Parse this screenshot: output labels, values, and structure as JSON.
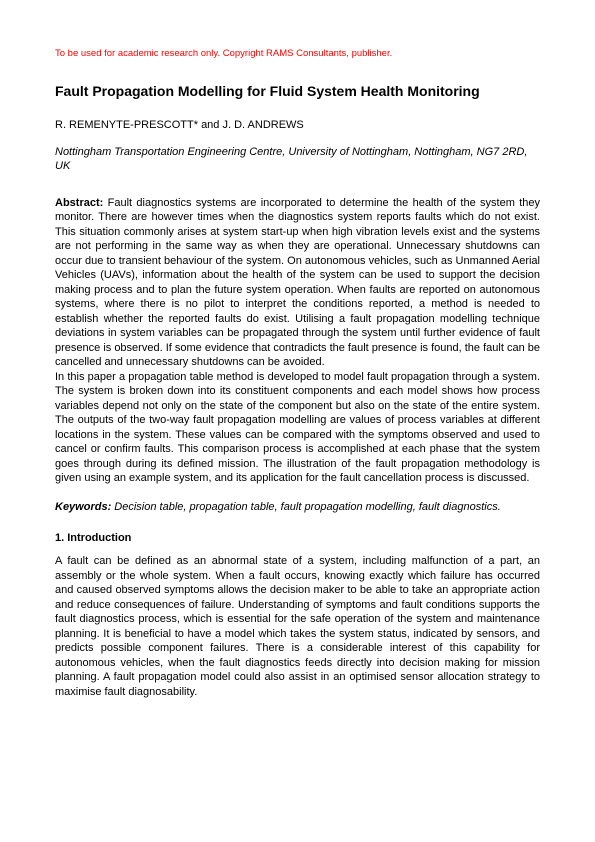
{
  "copyright": "To be used for academic research only. Copyright RAMS Consultants, publisher.",
  "title": "Fault Propagation Modelling for Fluid System Health Monitoring",
  "authors": "R. REMENYTE-PRESCOTT* and J. D. ANDREWS",
  "affiliation": "Nottingham Transportation Engineering Centre, University of Nottingham, Nottingham, NG7 2RD, UK",
  "abstract_label": "Abstract:",
  "abstract_body": " Fault diagnostics systems are incorporated to determine the health of the system they monitor. There are however times when the diagnostics system reports faults which do not exist. This situation commonly arises at system start-up when high vibration levels exist and the systems are not performing in the same way as when they are operational. Unnecessary shutdowns can occur due to transient behaviour of the system. On autonomous vehicles, such as Unmanned Aerial Vehicles (UAVs), information about the health of the system can be used to support the decision making process and to plan the future system operation. When faults are reported on autonomous systems, where there is no pilot to interpret the conditions reported, a method is needed to establish whether the reported faults do exist. Utilising a fault propagation modelling technique deviations in system variables can be propagated through the system until further evidence of fault presence is observed. If some evidence that contradicts the fault presence is found, the fault can be cancelled and unnecessary shutdowns can be avoided.",
  "abstract_body2": "In this paper a propagation table method is developed to model fault propagation through a system. The system is broken down into its constituent components and each model shows how process variables depend not only on the state of the component but also on the state of the entire system. The outputs of the two-way fault propagation modelling are values of process variables at different locations in the system. These values can be compared with the symptoms observed and used to cancel or confirm faults. This comparison process is accomplished at each phase that the system goes through during its defined mission. The illustration of the fault propagation methodology is given using an example system, and its application for the fault cancellation process is discussed.",
  "keywords_label": "Keywords:",
  "keywords_body": " Decision table, propagation table, fault propagation modelling, fault diagnostics.",
  "section1_heading": "1. Introduction",
  "section1_body": "A fault can be defined as an abnormal state of a system, including malfunction of a part, an assembly or the whole system. When a fault occurs, knowing exactly which failure has occurred and caused observed symptoms allows the decision maker to be able to take an appropriate action and reduce consequences of failure. Understanding of symptoms and fault conditions supports the fault diagnostics process, which is essential for the safe operation of the system and maintenance planning. It is beneficial to have a model which takes the system status, indicated by sensors, and predicts possible component failures. There is a considerable interest of this capability for autonomous vehicles, when the fault diagnostics feeds directly into decision making for mission planning. A fault propagation model could also assist in an optimised sensor allocation strategy to maximise fault diagnosability."
}
